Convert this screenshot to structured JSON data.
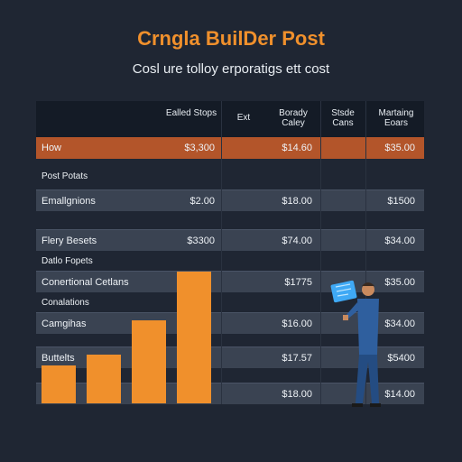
{
  "header": {
    "title": "Crngla BuilDer Post",
    "subtitle": "Cosl ure tolloy erporatigs ett cost"
  },
  "columns": [
    "Ealled Stops",
    "Ext",
    "Borady Caley",
    "Stsde Cans",
    "Martaing Eoars"
  ],
  "rows": [
    {
      "label": "How",
      "v1": "$3,300",
      "v2": "$14.60",
      "v3": "$35.00",
      "style": "highlight"
    },
    {
      "label": "Post Potats",
      "v1": "",
      "v2": "",
      "v3": "",
      "style": "section"
    },
    {
      "label": "Emallgnions",
      "v1": "$2.00",
      "v2": "$18.00",
      "v3": "$1500",
      "style": "row"
    },
    {
      "label": "Flery Besets",
      "v1": "$3300",
      "v2": "$74.00",
      "v3": "$34.00",
      "style": "row"
    },
    {
      "label": "Datlo Fopets",
      "v1": "",
      "v2": "",
      "v3": "",
      "style": "section"
    },
    {
      "label": "Conertional Cetlans",
      "v1": "",
      "v2": "$1775",
      "v3": "$35.00",
      "style": "row"
    },
    {
      "label": "Conalations",
      "v1": "",
      "v2": "",
      "v3": "",
      "style": "section"
    },
    {
      "label": "Camgihas",
      "v1": "",
      "v2": "$16.00",
      "v3": "$34.00",
      "style": "row"
    },
    {
      "label": "Buttelts",
      "v1": "",
      "v2": "$17.57",
      "v3": "$5400",
      "style": "row"
    },
    {
      "label": "",
      "v1": "",
      "v2": "$18.00",
      "v3": "$14.00",
      "style": "row"
    }
  ],
  "chart_data": {
    "type": "bar",
    "values": [
      40,
      52,
      88,
      140
    ]
  },
  "colors": {
    "accent": "#f0902c",
    "highlight_row": "#b3552a",
    "background": "#1f2633"
  }
}
